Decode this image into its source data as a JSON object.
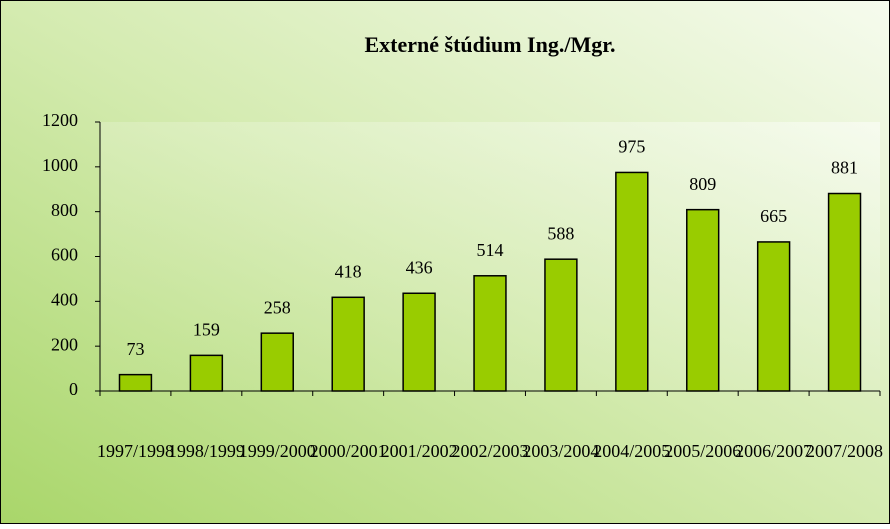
{
  "chart_data": {
    "type": "bar",
    "title": "Externé štúdium Ing./Mgr.",
    "categories": [
      "1997/1998",
      "1998/1999",
      "1999/2000",
      "2000/2001",
      "2001/2002",
      "2002/2003",
      "2003/2004",
      "2004/2005",
      "2005/2006",
      "2006/2007",
      "2007/2008"
    ],
    "values": [
      73,
      159,
      258,
      418,
      436,
      514,
      588,
      975,
      809,
      665,
      881
    ],
    "color": "#99cc00",
    "ylim": [
      0,
      1200
    ],
    "yticks": [
      0,
      200,
      400,
      600,
      800,
      1000,
      1200
    ],
    "grid": false
  }
}
